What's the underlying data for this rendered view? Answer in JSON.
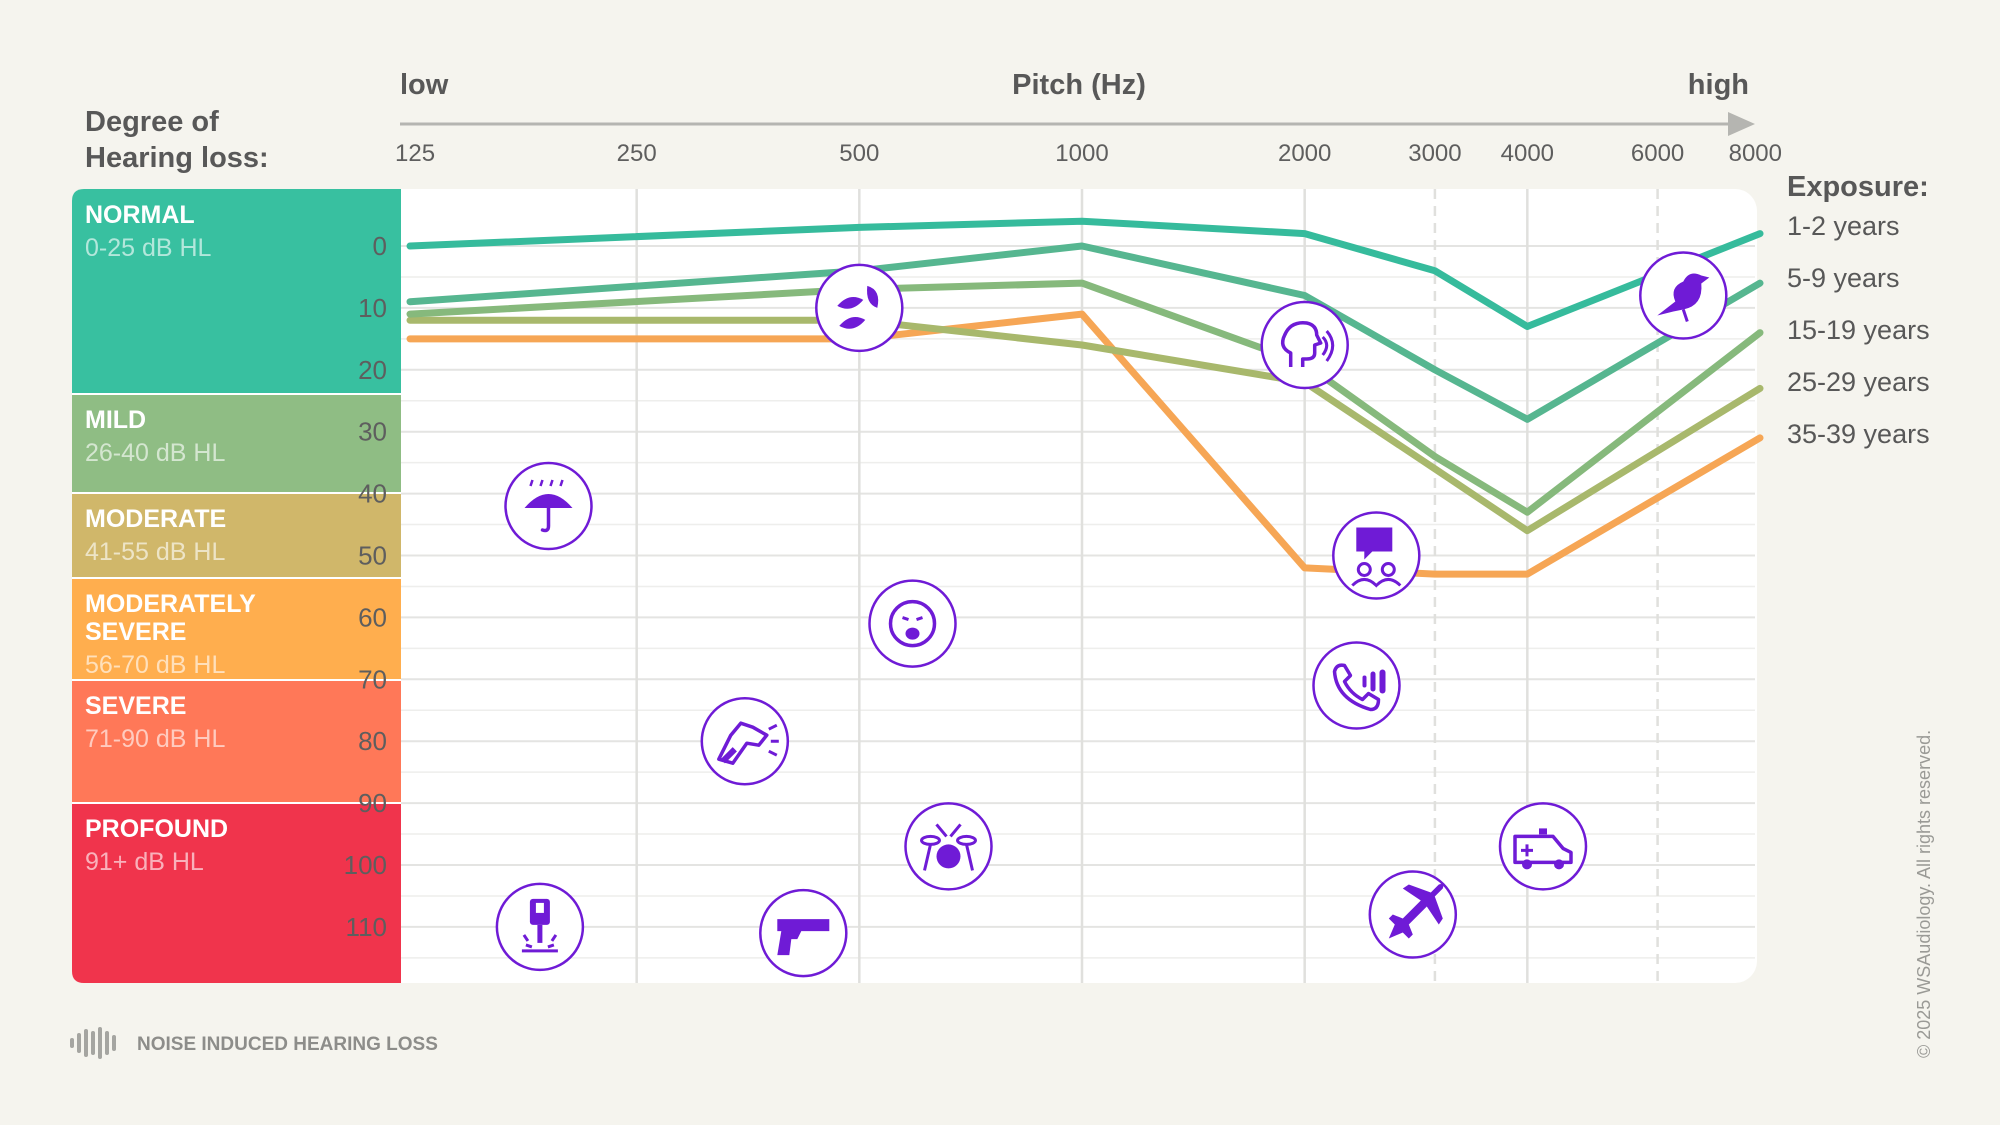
{
  "header": {
    "degree_title_line1": "Degree of",
    "degree_title_line2": "Hearing loss:",
    "pitch_low": "low",
    "pitch_title": "Pitch (Hz)",
    "pitch_high": "high"
  },
  "legend": {
    "title": "Exposure:",
    "items": [
      "1-2 years",
      "5-9 years",
      "15-19 years",
      "25-29 years",
      "35-39 years"
    ]
  },
  "bands": [
    {
      "name": "NORMAL",
      "range": "0-25 dB HL",
      "color": "#38c0a0"
    },
    {
      "name": "MILD",
      "range": "26-40 dB HL",
      "color": "#8fbd84"
    },
    {
      "name": "MODERATE",
      "range": "41-55 dB HL",
      "color": "#d0b76a"
    },
    {
      "name": "MODERATELY SEVERE",
      "name_line1": "MODERATELY",
      "name_line2": "SEVERE",
      "range": "56-70 dB HL",
      "color": "#ffae4e"
    },
    {
      "name": "SEVERE",
      "range": "71-90 dB HL",
      "color": "#ff7858"
    },
    {
      "name": "PROFOUND",
      "range": "91+ dB HL",
      "color": "#f0344c"
    }
  ],
  "footer": {
    "brand_label": "NOISE INDUCED HEARING LOSS",
    "copyright": "© 2025 WSAudiology. All rights reserved."
  },
  "icons": [
    {
      "name": "leaves-icon",
      "freq": 500,
      "db": 10
    },
    {
      "name": "whisper-icon",
      "freq": 2000,
      "db": 16
    },
    {
      "name": "bird-icon",
      "freq": 6500,
      "db": 8
    },
    {
      "name": "rain-umbrella-icon",
      "freq": 190,
      "db": 42
    },
    {
      "name": "conversation-icon",
      "freq": 2500,
      "db": 50
    },
    {
      "name": "crying-baby-icon",
      "freq": 590,
      "db": 61
    },
    {
      "name": "phone-icon",
      "freq": 2350,
      "db": 71
    },
    {
      "name": "barking-dog-icon",
      "freq": 350,
      "db": 80
    },
    {
      "name": "drums-icon",
      "freq": 660,
      "db": 97
    },
    {
      "name": "ambulance-icon",
      "freq": 4200,
      "db": 97
    },
    {
      "name": "jackhammer-icon",
      "freq": 185,
      "db": 110
    },
    {
      "name": "gun-icon",
      "freq": 420,
      "db": 111
    },
    {
      "name": "airplane-icon",
      "freq": 2800,
      "db": 108
    }
  ],
  "chart_data": {
    "type": "line",
    "x_scale": "log",
    "x": [
      125,
      500,
      1000,
      2000,
      3000,
      4000,
      8000
    ],
    "x_ticks": [
      125,
      250,
      500,
      1000,
      2000,
      3000,
      4000,
      6000,
      8000
    ],
    "y_ticks": [
      0,
      10,
      20,
      30,
      40,
      50,
      60,
      70,
      80,
      90,
      100,
      110
    ],
    "ylim": [
      -9,
      119
    ],
    "y_reversed": true,
    "ylabel": "",
    "xlabel": "Pitch (Hz)",
    "series": [
      {
        "name": "1-2 years",
        "color": "#36bb9c",
        "values": [
          0,
          -3,
          -4,
          -2,
          4,
          13,
          -2
        ]
      },
      {
        "name": "5-9 years",
        "color": "#56b690",
        "values": [
          9,
          4,
          0,
          8,
          20,
          28,
          6
        ]
      },
      {
        "name": "15-19 years",
        "color": "#86b97c",
        "values": [
          11,
          7,
          6,
          19,
          34,
          43,
          14
        ]
      },
      {
        "name": "25-29 years",
        "color": "#a8b86c",
        "values": [
          12,
          12,
          16,
          22,
          36,
          46,
          23
        ]
      },
      {
        "name": "35-39 years",
        "color": "#f6a655",
        "values": [
          15,
          15,
          11,
          52,
          53,
          53,
          31
        ]
      }
    ]
  }
}
